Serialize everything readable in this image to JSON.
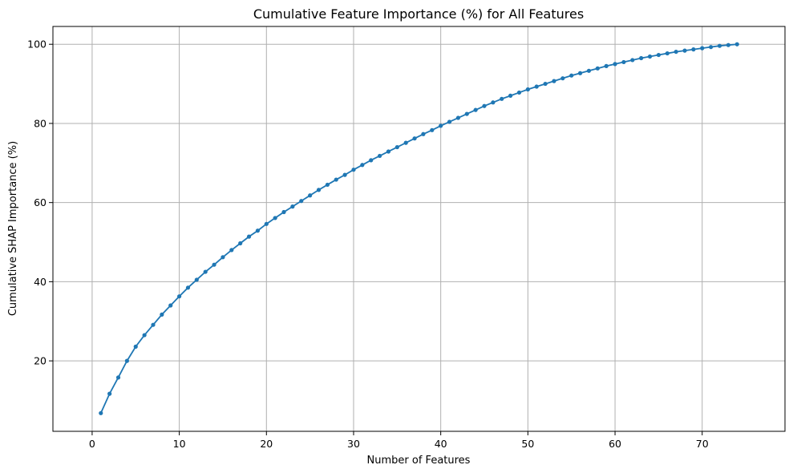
{
  "chart_data": {
    "type": "line",
    "title": "Cumulative Feature Importance (%) for All Features",
    "xlabel": "Number of Features",
    "ylabel": "Cumulative SHAP Importance (%)",
    "xlim": [
      -4.5,
      79.5
    ],
    "ylim": [
      2.2,
      104.5
    ],
    "xticks": [
      0,
      10,
      20,
      30,
      40,
      50,
      60,
      70
    ],
    "yticks": [
      20,
      40,
      60,
      80,
      100
    ],
    "grid": true,
    "color": "#1f77b4",
    "marker": "circle",
    "series": [
      {
        "x": [
          1,
          2,
          3,
          4,
          5,
          6,
          7,
          8,
          9,
          10,
          11,
          12,
          13,
          14,
          15,
          16,
          17,
          18,
          19,
          20,
          21,
          22,
          23,
          24,
          25,
          26,
          27,
          28,
          29,
          30,
          31,
          32,
          33,
          34,
          35,
          36,
          37,
          38,
          39,
          40,
          41,
          42,
          43,
          44,
          45,
          46,
          47,
          48,
          49,
          50,
          51,
          52,
          53,
          54,
          55,
          56,
          57,
          58,
          59,
          60,
          61,
          62,
          63,
          64,
          65,
          66,
          67,
          68,
          69,
          70,
          71,
          72,
          73,
          74
        ],
        "y": [
          6.8,
          11.7,
          15.8,
          20.0,
          23.6,
          26.5,
          29.1,
          31.7,
          34.0,
          36.3,
          38.5,
          40.5,
          42.5,
          44.3,
          46.2,
          48.0,
          49.7,
          51.4,
          52.9,
          54.6,
          56.1,
          57.6,
          59.0,
          60.4,
          61.8,
          63.2,
          64.5,
          65.8,
          67.0,
          68.3,
          69.5,
          70.7,
          71.8,
          72.9,
          74.0,
          75.1,
          76.2,
          77.3,
          78.3,
          79.4,
          80.4,
          81.4,
          82.4,
          83.4,
          84.4,
          85.3,
          86.2,
          87.0,
          87.8,
          88.6,
          89.3,
          90.0,
          90.7,
          91.4,
          92.1,
          92.7,
          93.3,
          93.9,
          94.5,
          95.0,
          95.5,
          96.0,
          96.5,
          96.9,
          97.3,
          97.7,
          98.1,
          98.4,
          98.7,
          99.0,
          99.3,
          99.6,
          99.8,
          100.0
        ]
      }
    ]
  }
}
